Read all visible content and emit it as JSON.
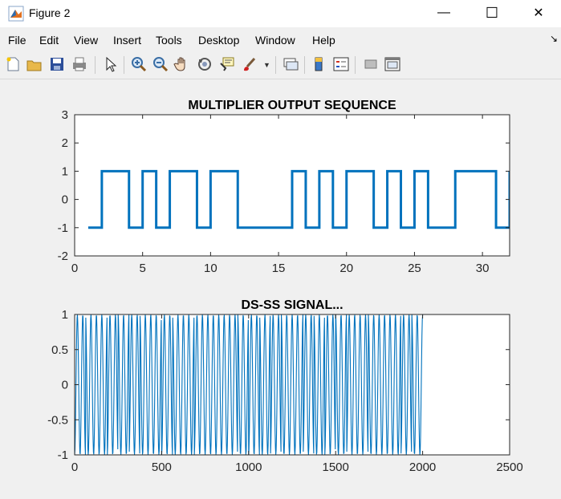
{
  "window": {
    "title": "Figure 2",
    "minimize_glyph": "—",
    "maximize_glyph": "☐",
    "close_glyph": "✕",
    "dock_glyph": "↘"
  },
  "menu": [
    "File",
    "Edit",
    "View",
    "Insert",
    "Tools",
    "Desktop",
    "Window",
    "Help"
  ],
  "toolbar": {
    "buttons": [
      "new-figure-icon",
      "open-file-icon",
      "save-icon",
      "print-icon",
      "select-arrow-icon",
      "zoom-in-icon",
      "zoom-out-icon",
      "pan-hand-icon",
      "rotate-3d-icon",
      "data-cursor-icon",
      "brush-icon",
      "link-plot-icon",
      "colorbar-icon",
      "legend-icon",
      "hide-plot-tools-icon",
      "show-plot-tools-icon"
    ]
  },
  "chart_data": [
    {
      "type": "line",
      "style": "stairs",
      "title": "MULTIPLIER OUTPUT SEQUENCE",
      "xlabel": "",
      "ylabel": "",
      "xlim": [
        0,
        32
      ],
      "ylim": [
        -2,
        3
      ],
      "xticks": [
        0,
        5,
        10,
        15,
        20,
        25,
        30
      ],
      "yticks": [
        -2,
        -1,
        0,
        1,
        2,
        3
      ],
      "color": "#0072bd",
      "x": [
        1,
        2,
        3,
        4,
        5,
        6,
        7,
        8,
        9,
        10,
        11,
        12,
        13,
        14,
        15,
        16,
        17,
        18,
        19,
        20,
        21,
        22,
        23,
        24,
        25,
        26,
        27,
        28,
        29,
        30,
        31,
        32
      ],
      "values": [
        -1,
        1,
        1,
        -1,
        1,
        -1,
        1,
        1,
        -1,
        1,
        1,
        -1,
        -1,
        -1,
        -1,
        1,
        -1,
        1,
        -1,
        1,
        1,
        -1,
        1,
        -1,
        1,
        -1,
        -1,
        1,
        1,
        1,
        -1,
        1
      ]
    },
    {
      "type": "line",
      "title": "DS-SS SIGNAL...",
      "xlabel": "",
      "ylabel": "",
      "xlim": [
        0,
        2500
      ],
      "ylim": [
        -1,
        1
      ],
      "xticks": [
        0,
        500,
        1000,
        1500,
        2000,
        2500
      ],
      "yticks": [
        -1,
        -0.5,
        0,
        0.5,
        1
      ],
      "color": "#0072bd",
      "signal": {
        "kind": "bpsk-modulated-carrier",
        "samples": 2000,
        "samples_per_chip": 62.5,
        "cycles_per_chip": 2,
        "chips": [
          -1,
          1,
          1,
          -1,
          1,
          -1,
          1,
          1,
          -1,
          1,
          1,
          -1,
          -1,
          -1,
          -1,
          1,
          -1,
          1,
          -1,
          1,
          1,
          -1,
          1,
          -1,
          1,
          -1,
          -1,
          1,
          1,
          1,
          -1,
          1
        ]
      }
    }
  ]
}
